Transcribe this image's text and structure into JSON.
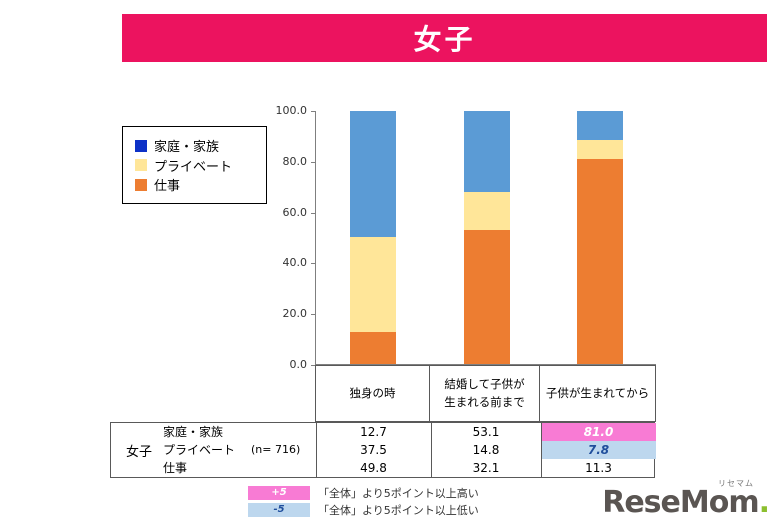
{
  "title": "女子",
  "colors": {
    "banner": "#EC135F",
    "highlight_high_bg": "#F87BD4",
    "highlight_high_text": "#FFFFFF",
    "highlight_low_bg": "#BDD7EE",
    "highlight_low_text": "#1F4E9C",
    "logo_gray": "#5A5552",
    "logo_green": "#8CBF2F"
  },
  "legend": {
    "items": [
      {
        "key": "family",
        "label": "家庭・家族",
        "color": "#0D31C7"
      },
      {
        "key": "private",
        "label": "プライベート",
        "color": "#FFE699"
      },
      {
        "key": "work",
        "label": "仕事",
        "color": "#ED7D31"
      }
    ]
  },
  "chart_data": {
    "type": "bar",
    "stacked": true,
    "unit": "percent",
    "title": "女子",
    "categories": [
      "独身の時",
      "結婚して子供が生まれる前まで",
      "子供が生まれてから"
    ],
    "series": [
      {
        "key": "family",
        "name": "家庭・家族",
        "values": [
          12.7,
          53.1,
          81.0
        ],
        "bar_color": "#ED7D31"
      },
      {
        "key": "private",
        "name": "プライベート",
        "values": [
          37.5,
          14.8,
          7.8
        ],
        "bar_color": "#FFE699"
      },
      {
        "key": "work",
        "name": "仕事",
        "values": [
          49.8,
          32.1,
          11.3
        ],
        "bar_color": "#5B9BD5"
      }
    ],
    "ylim": [
      0,
      100
    ],
    "yticks": [
      0,
      20,
      40,
      60,
      80,
      100
    ],
    "ytick_labels": [
      "0.0",
      "20.0",
      "40.0",
      "60.0",
      "80.0",
      "100.0"
    ],
    "legend_position": "outside-left",
    "grid": false
  },
  "table": {
    "group_label": "女子",
    "n_label": "(n= 716)",
    "columns": [
      "独身の時",
      "結婚して子供が生まれる前まで",
      "子供が生まれてから"
    ],
    "column_lines": [
      [
        "独身の時"
      ],
      [
        "結婚して子供が",
        "生まれる前まで"
      ],
      [
        "子供が生まれてから"
      ]
    ],
    "rows": [
      {
        "key": "family",
        "label": "家庭・家族",
        "values": [
          "12.7",
          "53.1",
          "81.0"
        ],
        "highlight": [
          "",
          "",
          "high"
        ]
      },
      {
        "key": "private",
        "label": "プライベート",
        "values": [
          "37.5",
          "14.8",
          "7.8"
        ],
        "highlight": [
          "",
          "",
          "low"
        ]
      },
      {
        "key": "work",
        "label": "仕事",
        "values": [
          "49.8",
          "32.1",
          "11.3"
        ],
        "highlight": [
          "",
          "",
          ""
        ]
      }
    ]
  },
  "footnotes": [
    {
      "type": "high",
      "badge": "+5",
      "text": "「全体」より5ポイント以上高い"
    },
    {
      "type": "low",
      "badge": "-5",
      "text": "「全体」より5ポイント以上低い"
    }
  ],
  "logo": {
    "text": "ReseMom",
    "dot": ".",
    "furigana": "リセマム"
  }
}
